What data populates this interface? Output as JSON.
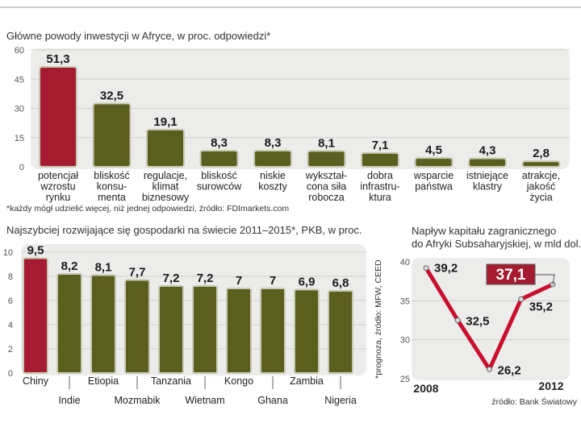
{
  "colors": {
    "highlight": "#a51c30",
    "bar": "#5a5e1e",
    "line": "#c8102e",
    "plot_bg": "#ececea",
    "grid": "#cfcfcc"
  },
  "chart_data": [
    {
      "type": "bar",
      "title": "Główne powody inwestycji w Afryce, w proc. odpowiedzi*",
      "categories": [
        [
          "potencjał",
          "wzrostu",
          "rynku"
        ],
        [
          "bliskość",
          "konsu-",
          "menta"
        ],
        [
          "regulacje,",
          "klimat",
          "biznesowy"
        ],
        [
          "bliskość",
          "surowców"
        ],
        [
          "niskie",
          "koszty"
        ],
        [
          "wykształ-",
          "cona siła",
          "robocza"
        ],
        [
          "dobra",
          "infrastru-",
          "ktura"
        ],
        [
          "wsparcie",
          "państwa"
        ],
        [
          "istniejące",
          "klastry"
        ],
        [
          "atrakcje,",
          "jakość",
          "życia"
        ]
      ],
      "values": [
        51.3,
        32.5,
        19.1,
        8.3,
        8.3,
        8.1,
        7.1,
        4.5,
        4.3,
        2.8
      ],
      "value_labels": [
        "51,3",
        "32,5",
        "19,1",
        "8,3",
        "8,3",
        "8,1",
        "7,1",
        "4,5",
        "4,3",
        "2,8"
      ],
      "highlight_index": 0,
      "ylim": [
        0,
        60
      ],
      "yticks": [
        "0",
        "15",
        "30",
        "45",
        "60"
      ],
      "grid": true,
      "footnote": "*każdy mógł udzielić więcej, niż jednej odpowiedzi, źródło: FDImarkets.com"
    },
    {
      "type": "bar",
      "title": "Najszybciej rozwijające się gospodarki na świecie 2011–2015*, PKB, w proc.",
      "categories": [
        "Chiny",
        "Indie",
        "Etiopia",
        "Mozmabik",
        "Tanzania",
        "Wietnam",
        "Kongo",
        "Ghana",
        "Zambia",
        "Nigeria"
      ],
      "values": [
        9.5,
        8.2,
        8.1,
        7.7,
        7.2,
        7.2,
        7,
        7,
        6.9,
        6.8
      ],
      "value_labels": [
        "9,5",
        "8,2",
        "8,1",
        "7,7",
        "7,2",
        "7,2",
        "7",
        "7",
        "6,9",
        "6,8"
      ],
      "highlight_index": 0,
      "ylim": [
        0,
        10
      ],
      "yticks": [
        "0",
        "2",
        "4",
        "6",
        "8",
        "10"
      ],
      "grid": true,
      "source": "*prognoza, źródło: MFW, CEED"
    },
    {
      "type": "line",
      "title": [
        "Napływ kapitału zagranicznego",
        "do Afryki Subsaharyjskiej, w mld dol."
      ],
      "x": [
        2008,
        2009,
        2010,
        2011,
        2012
      ],
      "xtick_labels": [
        "2008",
        "2012"
      ],
      "values": [
        39.2,
        32.5,
        26.2,
        35.2,
        37.1
      ],
      "value_labels": [
        "39,2",
        "32,5",
        "26,2",
        "35,2",
        "37,1"
      ],
      "highlight_index": 4,
      "ylim": [
        25,
        40
      ],
      "yticks": [
        "25",
        "30",
        "35",
        "40"
      ],
      "grid": true,
      "source": "źródło: Bank Światowy"
    }
  ]
}
